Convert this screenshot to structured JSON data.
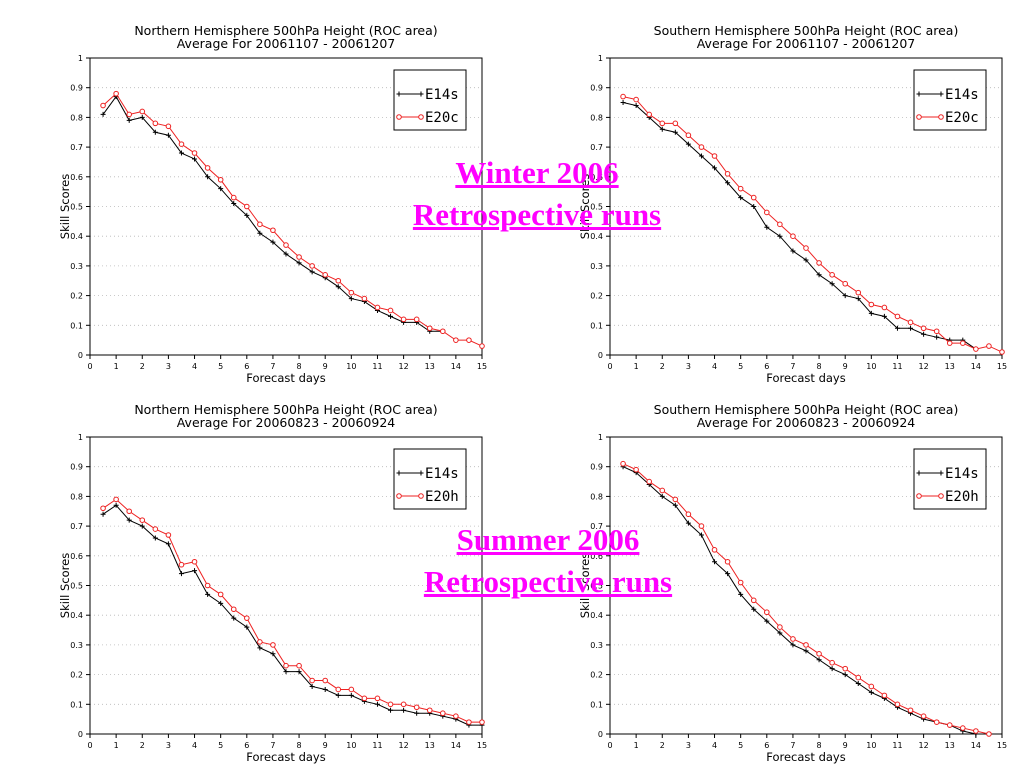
{
  "overlay": {
    "winter_line1": "Winter 2006",
    "winter_line2": "Retrospective runs",
    "summer_line1": "Summer 2006",
    "summer_line2": "Retrospective runs"
  },
  "colors": {
    "black_series": "#000000",
    "red_series": "#ee2222",
    "overlay": "#ff00ff"
  },
  "chart_data": [
    {
      "type": "line",
      "title": "Northern Hemisphere 500hPa Height (ROC area)",
      "subtitle": "Average For 20061107 - 20061207",
      "xlabel": "Forecast days",
      "ylabel": "Skill Scores",
      "xlim": [
        0,
        15
      ],
      "ylim": [
        0,
        1
      ],
      "xticks": [
        "0",
        "1",
        "2",
        "3",
        "4",
        "5",
        "6",
        "7",
        "8",
        "9",
        "10",
        "11",
        "12",
        "13",
        "14",
        "15"
      ],
      "yticks": [
        "0",
        "0.1",
        "0.2",
        "0.3",
        "0.4",
        "0.5",
        "0.6",
        "0.7",
        "0.8",
        "0.9",
        "1"
      ],
      "grid": "horizontal-dotted",
      "legend": "top-right",
      "x": [
        0.5,
        1,
        1.5,
        2,
        2.5,
        3,
        3.5,
        4,
        4.5,
        5,
        5.5,
        6,
        6.5,
        7,
        7.5,
        8,
        8.5,
        9,
        9.5,
        10,
        10.5,
        11,
        11.5,
        12,
        12.5,
        13,
        13.5,
        14,
        14.5,
        15
      ],
      "series": [
        {
          "name": "E14s",
          "marker": "plus",
          "values": [
            0.81,
            0.87,
            0.79,
            0.8,
            0.75,
            0.74,
            0.68,
            0.66,
            0.6,
            0.56,
            0.51,
            0.47,
            0.41,
            0.38,
            0.34,
            0.31,
            0.28,
            0.26,
            0.23,
            0.19,
            0.18,
            0.15,
            0.13,
            0.11,
            0.11,
            0.08,
            0.08,
            null,
            null,
            null
          ]
        },
        {
          "name": "E20c",
          "marker": "circle",
          "values": [
            0.84,
            0.88,
            0.81,
            0.82,
            0.78,
            0.77,
            0.71,
            0.68,
            0.63,
            0.59,
            0.53,
            0.5,
            0.44,
            0.42,
            0.37,
            0.33,
            0.3,
            0.27,
            0.25,
            0.21,
            0.19,
            0.16,
            0.15,
            0.12,
            0.12,
            0.09,
            0.08,
            0.05,
            0.05,
            0.03
          ]
        }
      ]
    },
    {
      "type": "line",
      "title": "Southern Hemisphere 500hPa Height (ROC area)",
      "subtitle": "Average For 20061107 - 20061207",
      "xlabel": "Forecast days",
      "ylabel": "Skill Scores",
      "xlim": [
        0,
        15
      ],
      "ylim": [
        0,
        1
      ],
      "xticks": [
        "0",
        "1",
        "2",
        "3",
        "4",
        "5",
        "6",
        "7",
        "8",
        "9",
        "10",
        "11",
        "12",
        "13",
        "14",
        "15"
      ],
      "yticks": [
        "0",
        "0.1",
        "0.2",
        "0.3",
        "0.4",
        "0.5",
        "0.6",
        "0.7",
        "0.8",
        "0.9",
        "1"
      ],
      "grid": "horizontal-dotted",
      "legend": "top-right",
      "x": [
        0.5,
        1,
        1.5,
        2,
        2.5,
        3,
        3.5,
        4,
        4.5,
        5,
        5.5,
        6,
        6.5,
        7,
        7.5,
        8,
        8.5,
        9,
        9.5,
        10,
        10.5,
        11,
        11.5,
        12,
        12.5,
        13,
        13.5,
        14,
        14.5,
        15
      ],
      "series": [
        {
          "name": "E14s",
          "marker": "plus",
          "values": [
            0.85,
            0.84,
            0.8,
            0.76,
            0.75,
            0.71,
            0.67,
            0.63,
            0.58,
            0.53,
            0.5,
            0.43,
            0.4,
            0.35,
            0.32,
            0.27,
            0.24,
            0.2,
            0.19,
            0.14,
            0.13,
            0.09,
            0.09,
            0.07,
            0.06,
            0.05,
            0.05,
            0.02,
            null,
            null
          ]
        },
        {
          "name": "E20c",
          "marker": "circle",
          "values": [
            0.87,
            0.86,
            0.81,
            0.78,
            0.78,
            0.74,
            0.7,
            0.67,
            0.61,
            0.56,
            0.53,
            0.48,
            0.44,
            0.4,
            0.36,
            0.31,
            0.27,
            0.24,
            0.21,
            0.17,
            0.16,
            0.13,
            0.11,
            0.09,
            0.08,
            0.04,
            0.04,
            0.02,
            0.03,
            0.01
          ]
        }
      ]
    },
    {
      "type": "line",
      "title": "Northern Hemisphere 500hPa Height (ROC area)",
      "subtitle": "Average For 20060823 - 20060924",
      "xlabel": "Forecast days",
      "ylabel": "Skill Scores",
      "xlim": [
        0,
        15
      ],
      "ylim": [
        0,
        1
      ],
      "xticks": [
        "0",
        "1",
        "2",
        "3",
        "4",
        "5",
        "6",
        "7",
        "8",
        "9",
        "10",
        "11",
        "12",
        "13",
        "14",
        "15"
      ],
      "yticks": [
        "0",
        "0.1",
        "0.2",
        "0.3",
        "0.4",
        "0.5",
        "0.6",
        "0.7",
        "0.8",
        "0.9",
        "1"
      ],
      "grid": "horizontal-dotted",
      "legend": "top-right",
      "x": [
        0.5,
        1,
        1.5,
        2,
        2.5,
        3,
        3.5,
        4,
        4.5,
        5,
        5.5,
        6,
        6.5,
        7,
        7.5,
        8,
        8.5,
        9,
        9.5,
        10,
        10.5,
        11,
        11.5,
        12,
        12.5,
        13,
        13.5,
        14,
        14.5,
        15
      ],
      "series": [
        {
          "name": "E14s",
          "marker": "plus",
          "values": [
            0.74,
            0.77,
            0.72,
            0.7,
            0.66,
            0.64,
            0.54,
            0.55,
            0.47,
            0.44,
            0.39,
            0.36,
            0.29,
            0.27,
            0.21,
            0.21,
            0.16,
            0.15,
            0.13,
            0.13,
            0.11,
            0.1,
            0.08,
            0.08,
            0.07,
            0.07,
            0.06,
            0.05,
            0.03,
            0.03
          ]
        },
        {
          "name": "E20h",
          "marker": "circle",
          "values": [
            0.76,
            0.79,
            0.75,
            0.72,
            0.69,
            0.67,
            0.57,
            0.58,
            0.5,
            0.47,
            0.42,
            0.39,
            0.31,
            0.3,
            0.23,
            0.23,
            0.18,
            0.18,
            0.15,
            0.15,
            0.12,
            0.12,
            0.1,
            0.1,
            0.09,
            0.08,
            0.07,
            0.06,
            0.04,
            0.04
          ]
        }
      ]
    },
    {
      "type": "line",
      "title": "Southern Hemisphere 500hPa Height (ROC area)",
      "subtitle": "Average For 20060823 - 20060924",
      "xlabel": "Forecast days",
      "ylabel": "Skill Scores",
      "xlim": [
        0,
        15
      ],
      "ylim": [
        0,
        1
      ],
      "xticks": [
        "0",
        "1",
        "2",
        "3",
        "4",
        "5",
        "6",
        "7",
        "8",
        "9",
        "10",
        "11",
        "12",
        "13",
        "14",
        "15"
      ],
      "yticks": [
        "0",
        "0.1",
        "0.2",
        "0.3",
        "0.4",
        "0.5",
        "0.6",
        "0.7",
        "0.8",
        "0.9",
        "1"
      ],
      "grid": "horizontal-dotted",
      "legend": "top-right",
      "x": [
        0.5,
        1,
        1.5,
        2,
        2.5,
        3,
        3.5,
        4,
        4.5,
        5,
        5.5,
        6,
        6.5,
        7,
        7.5,
        8,
        8.5,
        9,
        9.5,
        10,
        10.5,
        11,
        11.5,
        12,
        12.5,
        13,
        13.5,
        14,
        14.5,
        15
      ],
      "series": [
        {
          "name": "E14s",
          "marker": "plus",
          "values": [
            0.9,
            0.88,
            0.84,
            0.8,
            0.77,
            0.71,
            0.67,
            0.58,
            0.54,
            0.47,
            0.42,
            0.38,
            0.34,
            0.3,
            0.28,
            0.25,
            0.22,
            0.2,
            0.17,
            0.14,
            0.12,
            0.09,
            0.07,
            0.05,
            0.04,
            0.03,
            0.01,
            0.0,
            null,
            null
          ]
        },
        {
          "name": "E20h",
          "marker": "circle",
          "values": [
            0.91,
            0.89,
            0.85,
            0.82,
            0.79,
            0.74,
            0.7,
            0.62,
            0.58,
            0.51,
            0.45,
            0.41,
            0.36,
            0.32,
            0.3,
            0.27,
            0.24,
            0.22,
            0.19,
            0.16,
            0.13,
            0.1,
            0.08,
            0.06,
            0.04,
            0.03,
            0.02,
            0.01,
            0.0,
            null
          ]
        }
      ]
    }
  ]
}
